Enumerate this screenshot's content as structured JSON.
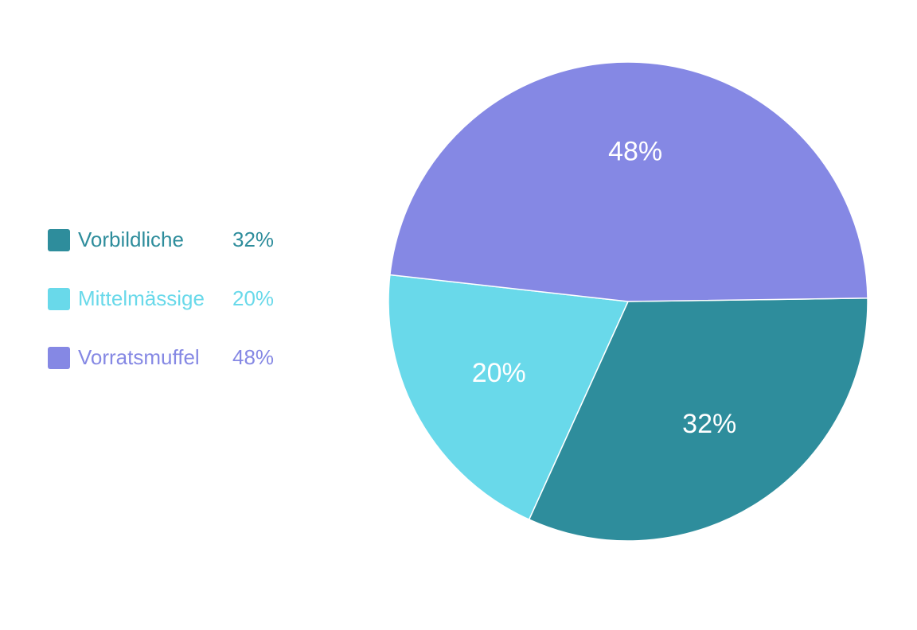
{
  "chart_data": {
    "type": "pie",
    "title": "",
    "slices": [
      {
        "label": "Vorbildliche",
        "value": 32,
        "value_label": "32%",
        "color": "#2e8d9c"
      },
      {
        "label": "Mittelmässige",
        "value": 20,
        "value_label": "20%",
        "color": "#69d9ea"
      },
      {
        "label": "Vorratsmuffel",
        "value": 48,
        "value_label": "48%",
        "color": "#8588e4"
      }
    ],
    "legend_position": "left",
    "slice_border_color": "#ffffff"
  }
}
